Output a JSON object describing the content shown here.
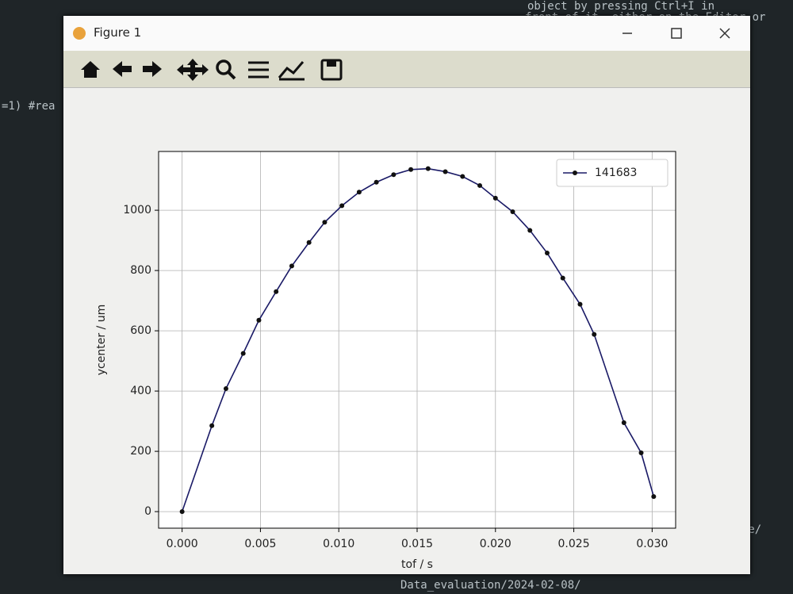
{
  "background": {
    "editor_lines": [
      "object by pressing Ctrl+I in",
      "front of it, either on the Editor or",
      "=1) #rea",
      "ware/",
      "Data_evaluation/2024-02-08/"
    ]
  },
  "window": {
    "title": "Figure 1"
  },
  "chart_data": {
    "type": "line",
    "xlabel": "tof / s",
    "ylabel": "ycenter / um",
    "x": [
      0.0,
      0.0019,
      0.0028,
      0.0039,
      0.0049,
      0.006,
      0.007,
      0.0081,
      0.0091,
      0.0102,
      0.0113,
      0.0124,
      0.0135,
      0.0146,
      0.0157,
      0.0168,
      0.0179,
      0.019,
      0.02,
      0.0211,
      0.0222,
      0.0233,
      0.0243,
      0.0254,
      0.0263,
      0.0282,
      0.0293,
      0.0301
    ],
    "series": [
      {
        "name": "141683",
        "color": "#1a1a66",
        "marker_color": "#111111",
        "values": [
          0,
          285,
          408,
          525,
          635,
          730,
          815,
          893,
          960,
          1015,
          1060,
          1093,
          1118,
          1135,
          1138,
          1128,
          1112,
          1082,
          1040,
          995,
          933,
          858,
          775,
          688,
          588,
          295,
          195,
          50
        ]
      }
    ],
    "xlim": [
      -0.0015,
      0.0315
    ],
    "ylim": [
      -55,
      1195
    ],
    "xticks": [
      {
        "value": 0.0,
        "label": "0.000"
      },
      {
        "value": 0.005,
        "label": "0.005"
      },
      {
        "value": 0.01,
        "label": "0.010"
      },
      {
        "value": 0.015,
        "label": "0.015"
      },
      {
        "value": 0.02,
        "label": "0.020"
      },
      {
        "value": 0.025,
        "label": "0.025"
      },
      {
        "value": 0.03,
        "label": "0.030"
      }
    ],
    "yticks": [
      0,
      200,
      400,
      600,
      800,
      1000
    ],
    "grid": true,
    "legend": "upper right"
  }
}
